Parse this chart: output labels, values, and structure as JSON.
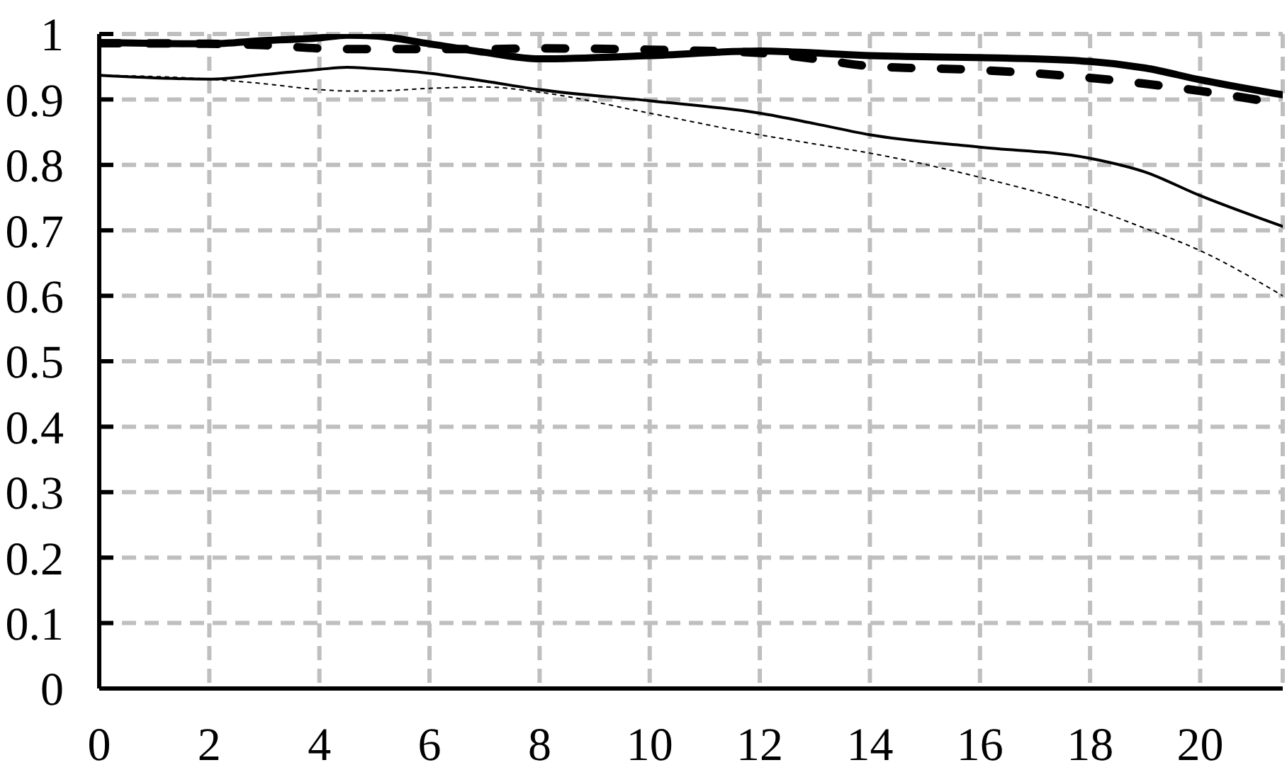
{
  "chart_data": {
    "type": "line",
    "x": [
      0,
      2,
      3,
      4,
      4.5,
      5,
      6,
      7,
      8,
      10,
      12,
      13,
      14,
      16,
      18,
      19,
      20,
      21.5
    ],
    "xlim": [
      0,
      21.5
    ],
    "xticks": [
      0,
      2,
      4,
      6,
      8,
      10,
      12,
      14,
      16,
      18,
      20
    ],
    "ylim": [
      0,
      1
    ],
    "yticks": [
      0,
      0.1,
      0.2,
      0.3,
      0.4,
      0.5,
      0.6,
      0.7,
      0.8,
      0.9,
      1
    ],
    "grid": true,
    "marker": "none",
    "series": [
      {
        "color": "#000000",
        "line_style": "solid",
        "values": [
          0.987,
          0.985,
          0.99,
          0.994,
          0.998,
          0.997,
          0.985,
          0.972,
          0.962,
          0.967,
          0.974,
          0.971,
          0.967,
          0.964,
          0.958,
          0.948,
          0.93,
          0.907
        ]
      },
      {
        "color": "#000000",
        "line_style": "dashed",
        "values": [
          0.986,
          0.985,
          0.983,
          0.978,
          0.977,
          0.977,
          0.977,
          0.977,
          0.978,
          0.976,
          0.971,
          0.962,
          0.951,
          0.945,
          0.933,
          0.924,
          0.913,
          0.893
        ]
      },
      {
        "color": "#000000",
        "line_style": "solid",
        "values": [
          0.937,
          0.931,
          0.938,
          0.946,
          0.949,
          0.947,
          0.94,
          0.928,
          0.915,
          0.898,
          0.879,
          0.863,
          0.846,
          0.827,
          0.81,
          0.789,
          0.753,
          0.706
        ]
      },
      {
        "color": "#000000",
        "line_style": "dashed",
        "values": [
          0.937,
          0.931,
          0.924,
          0.915,
          0.913,
          0.913,
          0.917,
          0.919,
          0.911,
          0.879,
          0.846,
          0.832,
          0.818,
          0.781,
          0.734,
          0.703,
          0.669,
          0.6
        ]
      }
    ]
  }
}
